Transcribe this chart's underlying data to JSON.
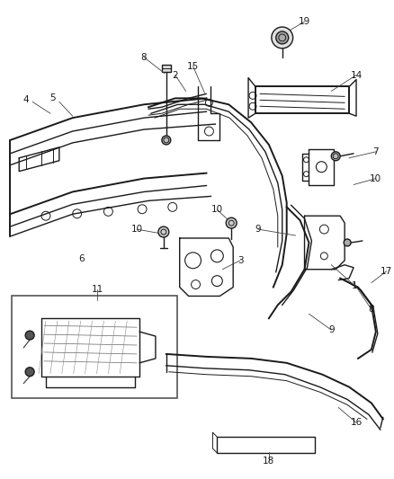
{
  "bg_color": "#ffffff",
  "fig_width": 4.38,
  "fig_height": 5.33,
  "dpi": 100,
  "line_color": "#1a1a1a",
  "label_color": "#1a1a1a",
  "label_fontsize": 7.5,
  "thin_lw": 0.7,
  "mid_lw": 1.0,
  "thick_lw": 1.4
}
